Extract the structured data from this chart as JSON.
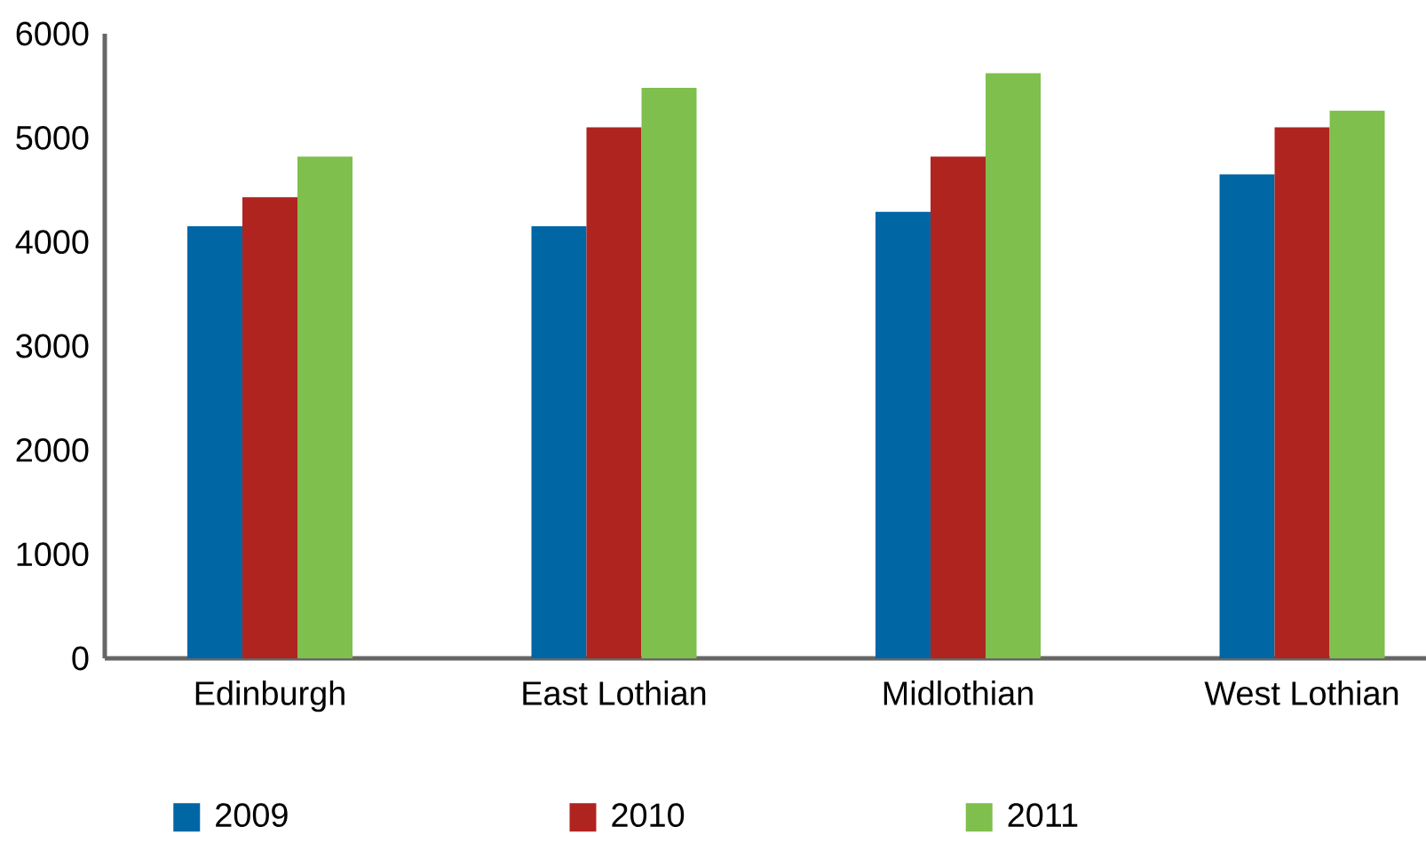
{
  "chart_data": {
    "type": "bar",
    "categories": [
      "Edinburgh",
      "East Lothian",
      "Midlothian",
      "West Lothian"
    ],
    "series": [
      {
        "name": "2009",
        "color": "#0066a4",
        "values": [
          4150,
          4150,
          4290,
          4650
        ]
      },
      {
        "name": "2010",
        "color": "#b0241f",
        "values": [
          4430,
          5100,
          4820,
          5100
        ]
      },
      {
        "name": "2011",
        "color": "#7fbf4d",
        "values": [
          4820,
          5480,
          5620,
          5260
        ]
      }
    ],
    "ylim": [
      0,
      6000
    ],
    "yticks": [
      0,
      1000,
      2000,
      3000,
      4000,
      5000,
      6000
    ],
    "grid": false,
    "legend": "bottom"
  }
}
